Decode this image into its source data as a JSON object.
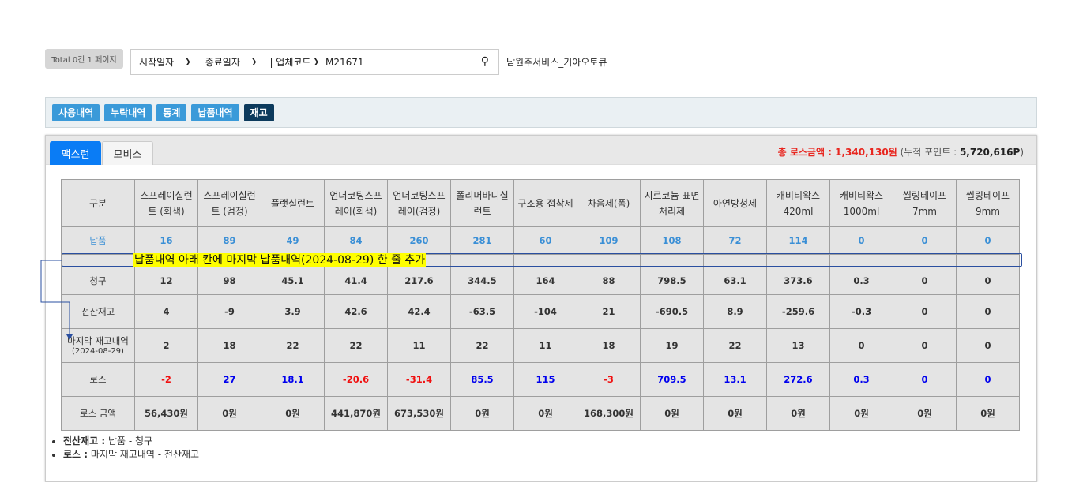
{
  "total_label": "Total 0건 1 페이지",
  "search": {
    "start_date": "시작일자",
    "end_date": "종료일자",
    "code_label": "| 업체코드",
    "code_value": "M21671"
  },
  "company": "남원주서비스_기아오토큐",
  "nav": [
    "사용내역",
    "누락내역",
    "통계",
    "납품내역",
    "재고"
  ],
  "tabs": [
    "맥스런",
    "모비스"
  ],
  "loss": {
    "label": "총 로스금액 : 1,340,130원",
    "points_label": "(누적 포인트 : ",
    "points_value": "5,720,616P",
    "points_close": ")"
  },
  "table": {
    "headers": [
      "구분",
      "스프레이실런트 (회색)",
      "스프레이실런트 (검정)",
      "플랫실런트",
      "언더코팅스프레이(회색)",
      "언더코팅스프레이(검정)",
      "폴리머바디실런트",
      "구조용 접착제",
      "차음제(폼)",
      "지르코늄 표면처리제",
      "아연방청제",
      "캐비티왁스420ml",
      "캐비티왁스1000ml",
      "씰링테이프 7mm",
      "씰링테이프 9mm"
    ],
    "rows": [
      {
        "label": "납품",
        "values": [
          "16",
          "89",
          "49",
          "84",
          "260",
          "281",
          "60",
          "109",
          "108",
          "72",
          "114",
          "0",
          "0",
          "0"
        ]
      },
      {
        "label": "청구",
        "values": [
          "12",
          "98",
          "45.1",
          "41.4",
          "217.6",
          "344.5",
          "164",
          "88",
          "798.5",
          "63.1",
          "373.6",
          "0.3",
          "0",
          "0"
        ]
      },
      {
        "label": "전산재고",
        "values": [
          "4",
          "-9",
          "3.9",
          "42.6",
          "42.4",
          "-63.5",
          "-104",
          "21",
          "-690.5",
          "8.9",
          "-259.6",
          "-0.3",
          "0",
          "0"
        ]
      },
      {
        "label": "마지막 재고내역",
        "sublabel": "(2024-08-29)",
        "values": [
          "2",
          "18",
          "22",
          "22",
          "11",
          "22",
          "11",
          "18",
          "19",
          "22",
          "13",
          "0",
          "0",
          "0"
        ]
      },
      {
        "label": "로스",
        "values": [
          "-2",
          "27",
          "18.1",
          "-20.6",
          "-31.4",
          "85.5",
          "115",
          "-3",
          "709.5",
          "13.1",
          "272.6",
          "0.3",
          "0",
          "0"
        ]
      },
      {
        "label": "로스 금액",
        "values": [
          "56,430원",
          "0원",
          "0원",
          "441,870원",
          "673,530원",
          "0원",
          "0원",
          "168,300원",
          "0원",
          "0원",
          "0원",
          "0원",
          "0원",
          "0원"
        ]
      }
    ]
  },
  "annotation": "납품내역 아래 칸에 마지막 납품내역(2024-08-29) 한 줄 추가",
  "notes": [
    {
      "term": "전산재고 :",
      "desc": " 납품 - 청구"
    },
    {
      "term": "로스 :",
      "desc": " 마지막 재고내역 - 전산재고"
    }
  ],
  "colors": {
    "positive": "#0000ee",
    "negative": "#f01010",
    "accent": "#3a9ad9",
    "active_tab": "#0a7cf5"
  }
}
